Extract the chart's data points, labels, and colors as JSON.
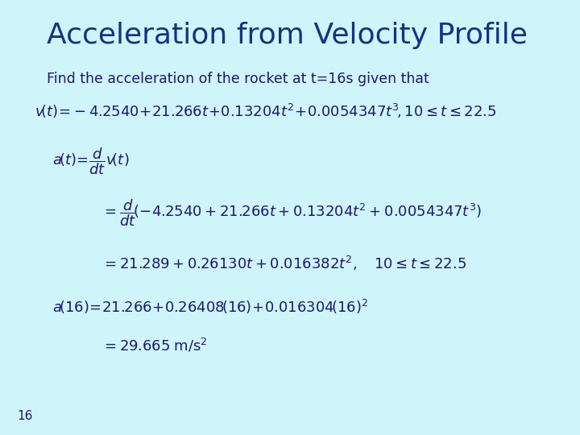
{
  "title": "Acceleration from Velocity Profile",
  "subtitle": "Find the acceleration of the rocket at t=16s given that",
  "bg_color": "#cff5fb",
  "title_color": "#1a3080",
  "text_color": "#1a1a6e",
  "slide_number": "16",
  "figsize": [
    7.2,
    5.4
  ],
  "dpi": 100
}
